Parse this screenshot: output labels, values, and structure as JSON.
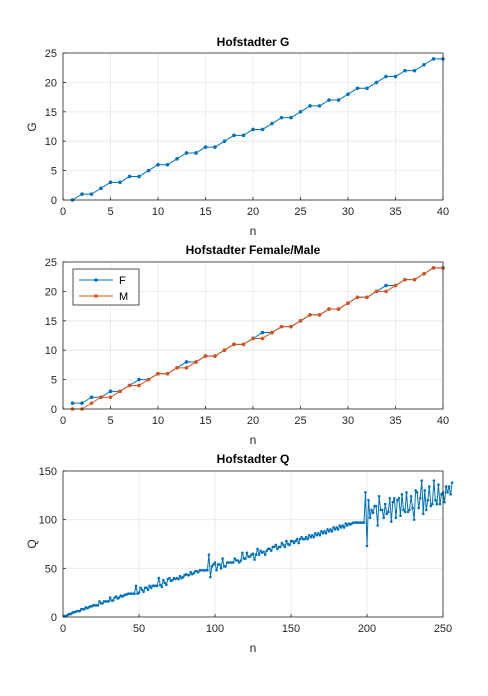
{
  "chart_data": [
    {
      "type": "line",
      "title": "Hofstadter G",
      "xlabel": "n",
      "ylabel": "G",
      "xlim": [
        0,
        40
      ],
      "ylim": [
        0,
        25
      ],
      "xticks": [
        0,
        5,
        10,
        15,
        20,
        25,
        30,
        35,
        40
      ],
      "yticks": [
        0,
        5,
        10,
        15,
        20,
        25
      ],
      "grid": true,
      "x": [
        1,
        2,
        3,
        4,
        5,
        6,
        7,
        8,
        9,
        10,
        11,
        12,
        13,
        14,
        15,
        16,
        17,
        18,
        19,
        20,
        21,
        22,
        23,
        24,
        25,
        26,
        27,
        28,
        29,
        30,
        31,
        32,
        33,
        34,
        35,
        36,
        37,
        38,
        39,
        40
      ],
      "series": [
        {
          "color": "#0072BD",
          "values": [
            0,
            1,
            1,
            2,
            3,
            3,
            4,
            4,
            5,
            6,
            6,
            7,
            8,
            8,
            9,
            9,
            10,
            11,
            11,
            12,
            12,
            13,
            14,
            14,
            15,
            16,
            16,
            17,
            17,
            18,
            19,
            19,
            20,
            21,
            21,
            22,
            22,
            23,
            24,
            24
          ]
        }
      ]
    },
    {
      "type": "line",
      "title": "Hofstadter Female/Male",
      "xlabel": "n",
      "ylabel": "",
      "xlim": [
        0,
        40
      ],
      "ylim": [
        0,
        25
      ],
      "xticks": [
        0,
        5,
        10,
        15,
        20,
        25,
        30,
        35,
        40
      ],
      "yticks": [
        0,
        5,
        10,
        15,
        20,
        25
      ],
      "grid": true,
      "legend": "top-left",
      "x": [
        1,
        2,
        3,
        4,
        5,
        6,
        7,
        8,
        9,
        10,
        11,
        12,
        13,
        14,
        15,
        16,
        17,
        18,
        19,
        20,
        21,
        22,
        23,
        24,
        25,
        26,
        27,
        28,
        29,
        30,
        31,
        32,
        33,
        34,
        35,
        36,
        37,
        38,
        39,
        40
      ],
      "series": [
        {
          "name": "F",
          "color": "#0072BD",
          "values": [
            1,
            1,
            2,
            2,
            3,
            3,
            4,
            5,
            5,
            6,
            6,
            7,
            8,
            8,
            9,
            9,
            10,
            11,
            11,
            12,
            13,
            13,
            14,
            14,
            15,
            16,
            16,
            17,
            17,
            18,
            19,
            19,
            20,
            21,
            21,
            22,
            22,
            23,
            24,
            24
          ]
        },
        {
          "name": "M",
          "color": "#D95319",
          "values": [
            0,
            0,
            1,
            2,
            2,
            3,
            4,
            4,
            5,
            6,
            6,
            7,
            7,
            8,
            9,
            9,
            10,
            11,
            11,
            12,
            12,
            13,
            14,
            14,
            15,
            16,
            16,
            17,
            17,
            18,
            19,
            19,
            20,
            20,
            21,
            22,
            22,
            23,
            24,
            24
          ]
        }
      ]
    },
    {
      "type": "line",
      "title": "Hofstadter Q",
      "xlabel": "n",
      "ylabel": "Q",
      "xlim": [
        0,
        250
      ],
      "ylim": [
        0,
        150
      ],
      "xticks": [
        0,
        50,
        100,
        150,
        200,
        250
      ],
      "yticks": [
        0,
        50,
        100,
        150
      ],
      "grid": true,
      "n_points": 250,
      "series": [
        {
          "color": "#0072BD",
          "values": [
            1,
            1,
            2,
            3,
            3,
            4,
            5,
            5,
            6,
            6,
            6,
            8,
            8,
            8,
            10,
            9,
            10,
            11,
            11,
            12,
            12,
            12,
            12,
            16,
            14,
            14,
            16,
            16,
            16,
            16,
            20,
            17,
            17,
            20,
            21,
            19,
            20,
            22,
            21,
            22,
            23,
            23,
            24,
            24,
            24,
            24,
            24,
            32,
            24,
            25,
            30,
            28,
            26,
            30,
            30,
            28,
            32,
            30,
            32,
            32,
            32,
            32,
            40,
            33,
            31,
            38,
            35,
            33,
            39,
            40,
            37,
            38,
            40,
            39,
            40,
            39,
            42,
            40,
            41,
            43,
            44,
            43,
            43,
            46,
            44,
            45,
            47,
            47,
            46,
            48,
            48,
            48,
            48,
            48,
            48,
            64,
            41,
            52,
            54,
            56,
            48,
            54,
            54,
            50,
            60,
            52,
            52,
            56,
            56,
            56,
            56,
            56,
            60,
            58,
            58,
            56,
            58,
            66,
            60,
            60,
            66,
            62,
            62,
            64,
            65,
            59,
            64,
            70,
            64,
            68,
            66,
            67,
            64,
            68,
            70,
            70,
            68,
            72,
            72,
            74,
            70,
            72,
            72,
            76,
            74,
            72,
            78,
            75,
            74,
            78,
            78,
            76,
            78,
            80,
            76,
            80,
            82,
            80,
            80,
            82,
            80,
            84,
            82,
            84,
            82,
            86,
            84,
            86,
            84,
            88,
            86,
            88,
            86,
            90,
            88,
            90,
            88,
            92,
            90,
            92,
            90,
            94,
            92,
            94,
            92,
            96,
            94,
            96,
            95,
            96,
            97,
            97,
            97,
            97,
            97,
            97,
            97,
            97,
            128,
            73,
            120,
            102,
            110,
            107,
            114,
            114,
            94,
            124,
            110,
            110,
            102,
            116,
            106,
            108,
            122,
            98,
            118,
            122,
            102,
            120,
            122,
            104,
            126,
            110,
            108,
            128,
            108,
            110,
            124,
            112,
            100,
            130,
            128,
            112,
            122,
            140,
            106,
            130,
            110,
            120,
            134,
            114,
            116,
            140,
            120,
            116,
            136,
            116,
            126,
            128,
            118,
            134,
            128,
            134,
            126,
            138
          ]
        }
      ]
    }
  ]
}
